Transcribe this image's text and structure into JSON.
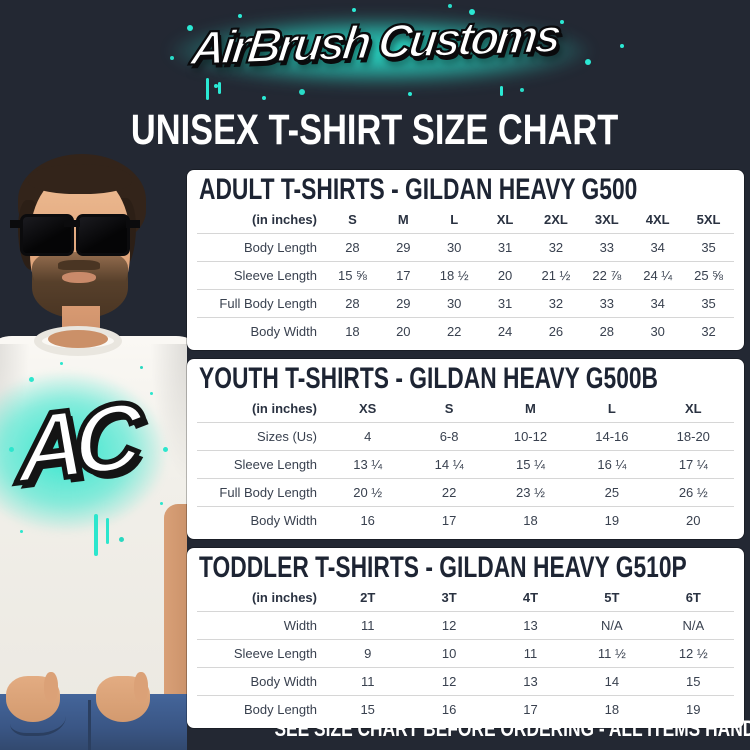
{
  "page": {
    "background": "#232833",
    "navy": "#1d2433",
    "teal": "#2be9d4",
    "card_background": "#ffffff"
  },
  "logo": {
    "text": "AirBrush Customs"
  },
  "title": "UNISEX T-SHIRT SIZE CHART",
  "model_photo": {
    "shirt_monogram": "AC"
  },
  "chart_data": [
    {
      "type": "table",
      "title": "ADULT T-SHIRTS - GILDAN HEAVY G500",
      "unit_header": "(in inches)",
      "columns": [
        "S",
        "M",
        "L",
        "XL",
        "2XL",
        "3XL",
        "4XL",
        "5XL"
      ],
      "rows": [
        {
          "label": "Body Length",
          "values": [
            "28",
            "29",
            "30",
            "31",
            "32",
            "33",
            "34",
            "35"
          ]
        },
        {
          "label": "Sleeve Length",
          "values": [
            "15 ⅝",
            "17",
            "18 ½",
            "20",
            "21 ½",
            "22 ⅞",
            "24 ¼",
            "25 ⅝"
          ]
        },
        {
          "label": "Full Body Length",
          "values": [
            "28",
            "29",
            "30",
            "31",
            "32",
            "33",
            "34",
            "35"
          ]
        },
        {
          "label": "Body Width",
          "values": [
            "18",
            "20",
            "22",
            "24",
            "26",
            "28",
            "30",
            "32"
          ]
        }
      ]
    },
    {
      "type": "table",
      "title": "YOUTH T-SHIRTS - GILDAN HEAVY G500B",
      "unit_header": "(in inches)",
      "columns": [
        "XS",
        "S",
        "M",
        "L",
        "XL"
      ],
      "rows": [
        {
          "label": "Sizes (Us)",
          "values": [
            "4",
            "6-8",
            "10-12",
            "14-16",
            "18-20"
          ]
        },
        {
          "label": "Sleeve Length",
          "values": [
            "13 ¼",
            "14 ¼",
            "15 ¼",
            "16 ¼",
            "17 ¼"
          ]
        },
        {
          "label": "Full Body Length",
          "values": [
            "20 ½",
            "22",
            "23 ½",
            "25",
            "26 ½"
          ]
        },
        {
          "label": "Body Width",
          "values": [
            "16",
            "17",
            "18",
            "19",
            "20"
          ]
        }
      ]
    },
    {
      "type": "table",
      "title": "TODDLER T-SHIRTS - GILDAN HEAVY G510P",
      "unit_header": "(in inches)",
      "columns": [
        "2T",
        "3T",
        "4T",
        "5T",
        "6T"
      ],
      "rows": [
        {
          "label": "Width",
          "values": [
            "11",
            "12",
            "13",
            "N/A",
            "N/A"
          ]
        },
        {
          "label": "Sleeve Length",
          "values": [
            "9",
            "10",
            "11",
            "11 ½",
            "12 ½"
          ]
        },
        {
          "label": "Body Width",
          "values": [
            "11",
            "12",
            "13",
            "14",
            "15"
          ]
        },
        {
          "label": "Body Length",
          "values": [
            "15",
            "16",
            "17",
            "18",
            "19"
          ]
        }
      ]
    }
  ],
  "footer": "SEE SIZE CHART BEFORE ORDERING - ALL ITEMS HAND-PAINTED TO ORDER"
}
